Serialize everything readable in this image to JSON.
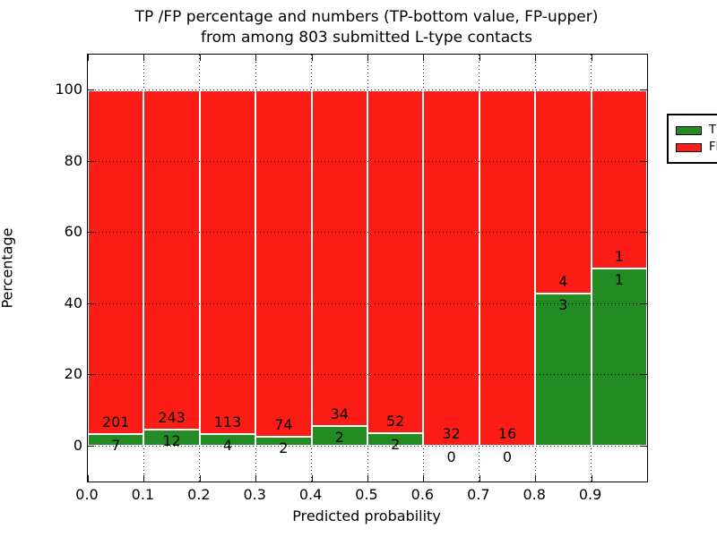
{
  "title": {
    "line1": "TP /FP percentage and numbers (TP-bottom value, FP-upper)",
    "line2": "from among 803 submitted L-type contacts"
  },
  "axes": {
    "x_label": "Predicted probability",
    "y_label": "Percentage",
    "x_tick_labels": [
      "0.0",
      "0.1",
      "0.2",
      "0.3",
      "0.4",
      "0.5",
      "0.6",
      "0.7",
      "0.8",
      "0.9"
    ],
    "y_tick_labels": [
      "0",
      "20",
      "40",
      "60",
      "80",
      "100"
    ],
    "y_tick_values": [
      0,
      20,
      40,
      60,
      80,
      100
    ]
  },
  "legend": {
    "items": [
      {
        "label": "TP",
        "color": "#228b22"
      },
      {
        "label": "FP",
        "color": "#fb1d15"
      }
    ]
  },
  "chart_data": {
    "type": "bar",
    "stacked": true,
    "units": "percent of bin total",
    "title": "TP /FP percentage and numbers (TP-bottom value, FP-upper) from among 803 submitted L-type contacts",
    "xlabel": "Predicted probability",
    "ylabel": "Percentage",
    "xlim": [
      0.0,
      1.0
    ],
    "ylim": [
      -10,
      110
    ],
    "grid": true,
    "legend_position": "upper right",
    "bar_label_note": "FP count printed above the TP/FP boundary, TP count printed below it",
    "bin_edges": [
      0.0,
      0.1,
      0.2,
      0.3,
      0.4,
      0.5,
      0.6,
      0.7,
      0.8,
      0.9,
      1.0
    ],
    "categories": [
      "0.0-0.1",
      "0.1-0.2",
      "0.2-0.3",
      "0.3-0.4",
      "0.4-0.5",
      "0.5-0.6",
      "0.6-0.7",
      "0.7-0.8",
      "0.8-0.9",
      "0.9-1.0"
    ],
    "series": [
      {
        "name": "TP",
        "color": "#228b22",
        "counts": [
          7,
          12,
          4,
          2,
          2,
          2,
          0,
          0,
          3,
          1
        ],
        "percent": [
          3.37,
          4.71,
          3.42,
          2.63,
          5.56,
          3.7,
          0.0,
          0.0,
          42.86,
          50.0
        ]
      },
      {
        "name": "FP",
        "color": "#fb1d15",
        "counts": [
          201,
          243,
          113,
          74,
          34,
          52,
          32,
          16,
          4,
          1
        ],
        "percent": [
          96.63,
          95.29,
          96.58,
          97.37,
          94.44,
          96.3,
          100.0,
          100.0,
          57.14,
          50.0
        ]
      }
    ],
    "total_submitted": 803
  }
}
